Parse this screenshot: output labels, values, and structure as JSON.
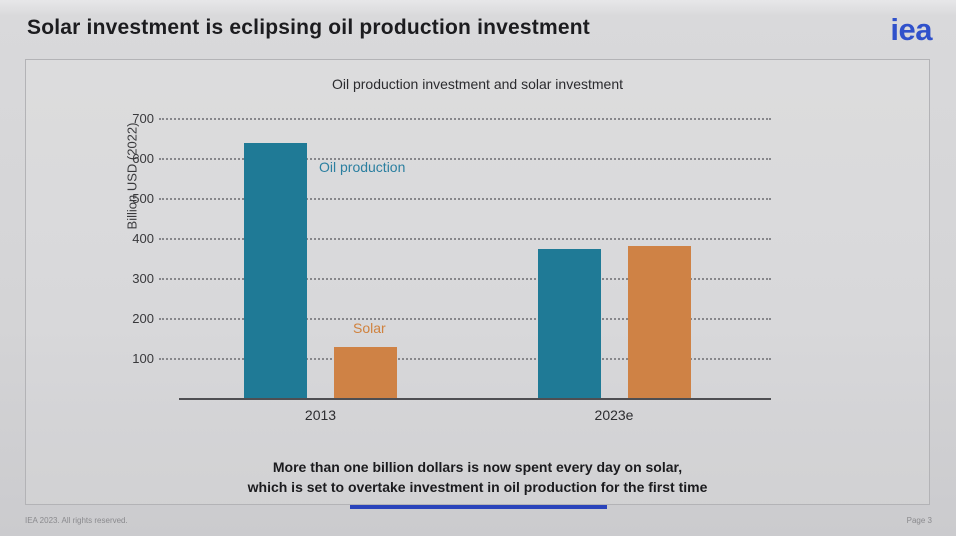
{
  "header": {
    "title": "Solar investment is eclipsing oil production investment",
    "logo": "iea",
    "logo_color": "#3051CB"
  },
  "chart_data": {
    "type": "bar",
    "title": "Oil production investment and solar investment",
    "ylabel": "Billion USD (2022)",
    "xlabel": "",
    "ylim": [
      0,
      700
    ],
    "yticks": [
      100,
      200,
      300,
      400,
      500,
      600,
      700
    ],
    "grid": "horizontal-dotted",
    "legend_position": "inline-labels-near-bars",
    "categories": [
      "2013",
      "2023e"
    ],
    "series": [
      {
        "name": "Oil production",
        "color": "#1F7A96",
        "label_color": "#2B7FA0",
        "values": [
          640,
          375
        ]
      },
      {
        "name": "Solar",
        "color": "#CF8245",
        "label_color": "#D0823E",
        "values": [
          130,
          383
        ]
      }
    ]
  },
  "message": {
    "line1": "More than one billion dollars is now spent every day on solar,",
    "line2": "which is set to overtake investment in oil production for the first time"
  },
  "footer": {
    "left": "IEA 2023. All rights reserved.",
    "right": "Page 3",
    "accent_bar_color": "#2A44BB"
  }
}
